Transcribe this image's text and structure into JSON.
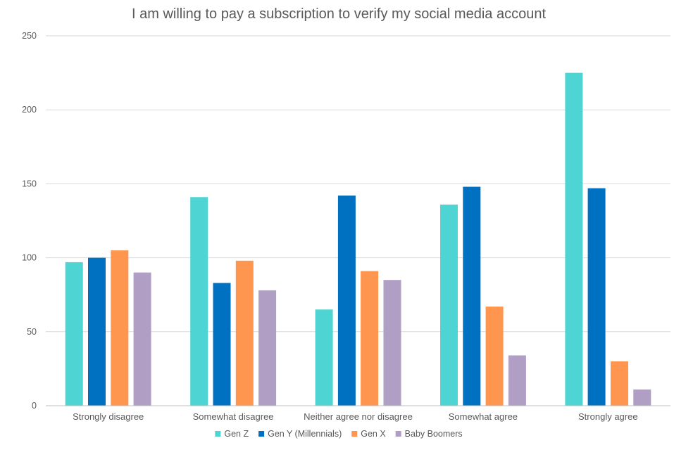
{
  "chart_data": {
    "type": "bar",
    "title": "I am willing to pay a subscription to verify my social media account",
    "xlabel": "",
    "ylabel": "",
    "ylim": [
      0,
      250
    ],
    "yticks": [
      0,
      50,
      100,
      150,
      200,
      250
    ],
    "categories": [
      "Strongly disagree",
      "Somewhat disagree",
      "Neither agree nor disagree",
      "Somewhat agree",
      "Strongly agree"
    ],
    "series": [
      {
        "name": "Gen Z",
        "color": "#4fd4d4",
        "values": [
          97,
          141,
          65,
          136,
          225
        ]
      },
      {
        "name": "Gen Y (Millennials)",
        "color": "#0070c0",
        "values": [
          100,
          83,
          142,
          148,
          147
        ]
      },
      {
        "name": "Gen X",
        "color": "#ff9650",
        "values": [
          105,
          98,
          91,
          67,
          30
        ]
      },
      {
        "name": "Baby Boomers",
        "color": "#b19ec5",
        "values": [
          90,
          78,
          85,
          34,
          11
        ]
      }
    ],
    "grid": true,
    "legend": "bottom"
  }
}
